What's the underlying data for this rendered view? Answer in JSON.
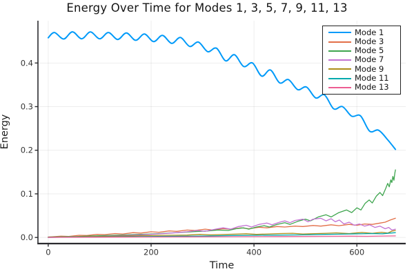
{
  "chart_data": {
    "type": "line",
    "title": "Energy Over Time for Modes 1, 3, 5, 7, 9, 11, 13",
    "xlabel": "Time",
    "ylabel": "Energy",
    "xlim": [
      -20,
      695
    ],
    "ylim": [
      -0.014,
      0.497
    ],
    "xticks": [
      0,
      200,
      400,
      600
    ],
    "xtick_labels": [
      "0",
      "200",
      "400",
      "600"
    ],
    "yticks": [
      0.0,
      0.1,
      0.2,
      0.3,
      0.4
    ],
    "ytick_labels": [
      "0.0",
      "0.1",
      "0.2",
      "0.3",
      "0.4"
    ],
    "grid": true,
    "grid_color": "#000000",
    "grid_opacity": 0.07,
    "axis_color": "#2a2a2e",
    "legend": {
      "position": "top-right",
      "entries": [
        "Mode 1",
        "Mode 3",
        "Mode 5",
        "Mode 7",
        "Mode 9",
        "Mode 11",
        "Mode 13"
      ]
    },
    "series": [
      {
        "name": "Mode 1",
        "color": "#009AF9",
        "line_width": 2.0,
        "smooth": true,
        "points": [
          [
            0,
            0.458
          ],
          [
            12,
            0.47
          ],
          [
            30,
            0.455
          ],
          [
            47,
            0.4715
          ],
          [
            65,
            0.4555
          ],
          [
            82,
            0.4712
          ],
          [
            100,
            0.4555
          ],
          [
            117,
            0.47
          ],
          [
            135,
            0.454
          ],
          [
            152,
            0.4688
          ],
          [
            170,
            0.452
          ],
          [
            187,
            0.4665
          ],
          [
            205,
            0.449
          ],
          [
            222,
            0.4635
          ],
          [
            240,
            0.445
          ],
          [
            257,
            0.4585
          ],
          [
            275,
            0.438
          ],
          [
            292,
            0.448
          ],
          [
            310,
            0.426
          ],
          [
            327,
            0.434
          ],
          [
            345,
            0.405
          ],
          [
            362,
            0.419
          ],
          [
            380,
            0.392
          ],
          [
            397,
            0.4
          ],
          [
            415,
            0.37
          ],
          [
            432,
            0.384
          ],
          [
            450,
            0.3545
          ],
          [
            467,
            0.362
          ],
          [
            485,
            0.339
          ],
          [
            502,
            0.345
          ],
          [
            520,
            0.32
          ],
          [
            537,
            0.327
          ],
          [
            555,
            0.295
          ],
          [
            572,
            0.3
          ],
          [
            590,
            0.278
          ],
          [
            607,
            0.279
          ],
          [
            625,
            0.2435
          ],
          [
            642,
            0.246
          ],
          [
            660,
            0.224
          ],
          [
            675,
            0.202
          ]
        ]
      },
      {
        "name": "Mode 3",
        "color": "#E26E47",
        "line_width": 1.3,
        "smooth": false,
        "points": [
          [
            0,
            0.001
          ],
          [
            25,
            0.003
          ],
          [
            40,
            0.0025
          ],
          [
            60,
            0.005
          ],
          [
            75,
            0.0045
          ],
          [
            95,
            0.007
          ],
          [
            110,
            0.0065
          ],
          [
            130,
            0.009
          ],
          [
            145,
            0.008
          ],
          [
            165,
            0.011
          ],
          [
            180,
            0.01
          ],
          [
            200,
            0.013
          ],
          [
            215,
            0.012
          ],
          [
            235,
            0.015
          ],
          [
            250,
            0.014
          ],
          [
            270,
            0.017
          ],
          [
            285,
            0.016
          ],
          [
            305,
            0.019
          ],
          [
            320,
            0.017
          ],
          [
            340,
            0.02
          ],
          [
            355,
            0.019
          ],
          [
            375,
            0.022
          ],
          [
            390,
            0.02
          ],
          [
            410,
            0.0235
          ],
          [
            425,
            0.022
          ],
          [
            445,
            0.025
          ],
          [
            460,
            0.024
          ],
          [
            480,
            0.026
          ],
          [
            495,
            0.025
          ],
          [
            515,
            0.0275
          ],
          [
            530,
            0.026
          ],
          [
            550,
            0.029
          ],
          [
            565,
            0.027
          ],
          [
            585,
            0.03
          ],
          [
            600,
            0.028
          ],
          [
            615,
            0.031
          ],
          [
            630,
            0.03
          ],
          [
            645,
            0.033
          ],
          [
            655,
            0.035
          ],
          [
            665,
            0.04
          ],
          [
            675,
            0.044
          ]
        ]
      },
      {
        "name": "Mode 5",
        "color": "#3DA44D",
        "line_width": 1.3,
        "smooth": false,
        "points": [
          [
            0,
            0.001
          ],
          [
            50,
            0.002
          ],
          [
            100,
            0.004
          ],
          [
            150,
            0.006
          ],
          [
            200,
            0.008
          ],
          [
            250,
            0.011
          ],
          [
            280,
            0.013
          ],
          [
            310,
            0.015
          ],
          [
            330,
            0.017
          ],
          [
            350,
            0.016
          ],
          [
            365,
            0.02
          ],
          [
            380,
            0.022
          ],
          [
            390,
            0.019
          ],
          [
            405,
            0.024
          ],
          [
            420,
            0.027
          ],
          [
            430,
            0.024
          ],
          [
            445,
            0.03
          ],
          [
            460,
            0.034
          ],
          [
            470,
            0.03
          ],
          [
            485,
            0.037
          ],
          [
            500,
            0.042
          ],
          [
            510,
            0.038
          ],
          [
            525,
            0.047
          ],
          [
            540,
            0.052
          ],
          [
            550,
            0.047
          ],
          [
            565,
            0.057
          ],
          [
            580,
            0.063
          ],
          [
            590,
            0.057
          ],
          [
            600,
            0.068
          ],
          [
            608,
            0.063
          ],
          [
            616,
            0.078
          ],
          [
            624,
            0.086
          ],
          [
            630,
            0.079
          ],
          [
            638,
            0.095
          ],
          [
            645,
            0.103
          ],
          [
            650,
            0.096
          ],
          [
            656,
            0.112
          ],
          [
            660,
            0.124
          ],
          [
            663,
            0.116
          ],
          [
            666,
            0.132
          ],
          [
            668,
            0.126
          ],
          [
            670,
            0.14
          ],
          [
            672,
            0.131
          ],
          [
            674,
            0.148
          ],
          [
            675,
            0.155
          ]
        ]
      },
      {
        "name": "Mode 7",
        "color": "#C271D2",
        "line_width": 1.3,
        "smooth": false,
        "points": [
          [
            0,
            0.0
          ],
          [
            45,
            0.001
          ],
          [
            90,
            0.002
          ],
          [
            135,
            0.004
          ],
          [
            180,
            0.006
          ],
          [
            225,
            0.009
          ],
          [
            250,
            0.011
          ],
          [
            270,
            0.013
          ],
          [
            290,
            0.016
          ],
          [
            305,
            0.014
          ],
          [
            325,
            0.019
          ],
          [
            340,
            0.022
          ],
          [
            355,
            0.019
          ],
          [
            370,
            0.025
          ],
          [
            385,
            0.028
          ],
          [
            395,
            0.024
          ],
          [
            410,
            0.03
          ],
          [
            425,
            0.033
          ],
          [
            435,
            0.029
          ],
          [
            450,
            0.035
          ],
          [
            460,
            0.038
          ],
          [
            470,
            0.034
          ],
          [
            480,
            0.039
          ],
          [
            495,
            0.042
          ],
          [
            505,
            0.036
          ],
          [
            515,
            0.042
          ],
          [
            530,
            0.044
          ],
          [
            540,
            0.038
          ],
          [
            550,
            0.043
          ],
          [
            558,
            0.036
          ],
          [
            566,
            0.04
          ],
          [
            575,
            0.031
          ],
          [
            585,
            0.035
          ],
          [
            595,
            0.028
          ],
          [
            605,
            0.031
          ],
          [
            615,
            0.026
          ],
          [
            625,
            0.029
          ],
          [
            635,
            0.023
          ],
          [
            645,
            0.026
          ],
          [
            655,
            0.02
          ],
          [
            662,
            0.023
          ],
          [
            668,
            0.017
          ],
          [
            675,
            0.019
          ]
        ]
      },
      {
        "name": "Mode 9",
        "color": "#AC8D18",
        "line_width": 1.3,
        "smooth": false,
        "points": [
          [
            0,
            0.0005
          ],
          [
            45,
            0.001
          ],
          [
            90,
            0.002
          ],
          [
            135,
            0.003
          ],
          [
            180,
            0.004
          ],
          [
            225,
            0.005
          ],
          [
            270,
            0.0055
          ],
          [
            295,
            0.007
          ],
          [
            315,
            0.006
          ],
          [
            360,
            0.0075
          ],
          [
            385,
            0.0085
          ],
          [
            405,
            0.007
          ],
          [
            450,
            0.009
          ],
          [
            475,
            0.0095
          ],
          [
            495,
            0.008
          ],
          [
            540,
            0.0095
          ],
          [
            560,
            0.0105
          ],
          [
            585,
            0.009
          ],
          [
            610,
            0.0115
          ],
          [
            630,
            0.0095
          ],
          [
            648,
            0.012
          ],
          [
            660,
            0.01
          ],
          [
            668,
            0.0145
          ],
          [
            675,
            0.016
          ]
        ]
      },
      {
        "name": "Mode 11",
        "color": "#00A9AD",
        "line_width": 1.3,
        "smooth": false,
        "points": [
          [
            0,
            0.0003
          ],
          [
            90,
            0.001
          ],
          [
            180,
            0.002
          ],
          [
            270,
            0.003
          ],
          [
            315,
            0.0035
          ],
          [
            360,
            0.0045
          ],
          [
            405,
            0.005
          ],
          [
            450,
            0.0055
          ],
          [
            495,
            0.006
          ],
          [
            540,
            0.007
          ],
          [
            585,
            0.008
          ],
          [
            630,
            0.009
          ],
          [
            650,
            0.0085
          ],
          [
            665,
            0.01
          ],
          [
            675,
            0.011
          ]
        ]
      },
      {
        "name": "Mode 13",
        "color": "#ED5D92",
        "line_width": 1.3,
        "smooth": false,
        "points": [
          [
            0,
            0.0002
          ],
          [
            90,
            0.0005
          ],
          [
            180,
            0.001
          ],
          [
            270,
            0.0013
          ],
          [
            360,
            0.0018
          ],
          [
            450,
            0.0022
          ],
          [
            540,
            0.0026
          ],
          [
            585,
            0.003
          ],
          [
            620,
            0.0026
          ],
          [
            650,
            0.0032
          ],
          [
            675,
            0.0035
          ]
        ]
      }
    ]
  }
}
